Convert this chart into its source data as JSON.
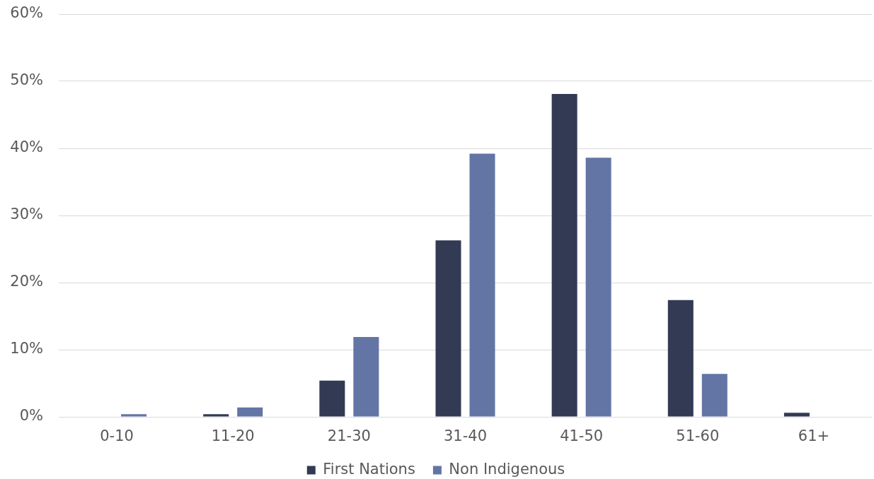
{
  "chart_data": {
    "type": "bar",
    "categories": [
      "0-10",
      "11-20",
      "21-30",
      "31-40",
      "41-50",
      "51-60",
      "61+"
    ],
    "series": [
      {
        "name": "First Nations",
        "color": "#333a53",
        "values": [
          0,
          0.4,
          5.4,
          26.3,
          48.1,
          17.4,
          0.6
        ]
      },
      {
        "name": "Non Indigenous",
        "color": "#6375a5",
        "values": [
          0.4,
          1.4,
          11.9,
          39.2,
          38.6,
          6.4,
          0
        ]
      }
    ],
    "ylim": [
      0,
      60
    ],
    "yticks": [
      {
        "value": 0,
        "label": "0%"
      },
      {
        "value": 10,
        "label": "10%"
      },
      {
        "value": 20,
        "label": "20%"
      },
      {
        "value": 30,
        "label": "30%"
      },
      {
        "value": 40,
        "label": "40%"
      },
      {
        "value": 50,
        "label": "50%"
      },
      {
        "value": 60,
        "label": "60%"
      }
    ],
    "grid": "y",
    "legend": "bottom"
  }
}
